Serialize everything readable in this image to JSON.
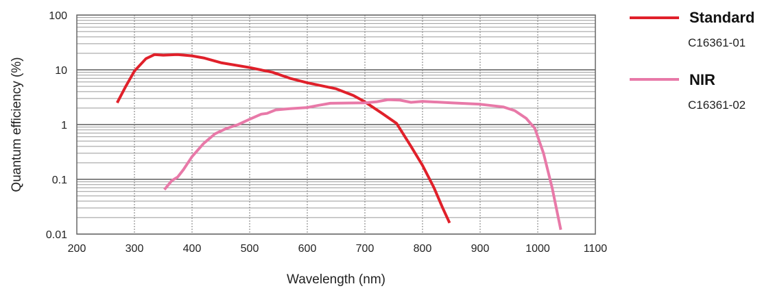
{
  "chart_data": {
    "type": "line",
    "title": "",
    "xlabel": "Wavelength (nm)",
    "ylabel": "Quantum efficiency (%)",
    "xlim": [
      200,
      1100
    ],
    "ylim": [
      0.01,
      100
    ],
    "yscale": "log",
    "xticks": [
      "200",
      "300",
      "400",
      "500",
      "600",
      "700",
      "800",
      "900",
      "1000",
      "1100"
    ],
    "yticks": [
      "0.01",
      "0.1",
      "1",
      "10",
      "100"
    ],
    "grid": true,
    "legend_position": "right",
    "series": [
      {
        "name": "Standard",
        "subtitle": "C16361-01",
        "color": "#e0202a",
        "x": [
          270,
          285,
          300,
          320,
          335,
          350,
          375,
          400,
          420,
          450,
          500,
          540,
          570,
          600,
          650,
          680,
          700,
          730,
          755,
          780,
          800,
          820,
          835,
          847
        ],
        "y": [
          2.5,
          5,
          9.5,
          16,
          19,
          18.5,
          19,
          18,
          16.5,
          13.5,
          11,
          9,
          7,
          5.8,
          4.5,
          3.4,
          2.6,
          1.6,
          1.05,
          0.4,
          0.18,
          0.07,
          0.03,
          0.016
        ]
      },
      {
        "name": "NIR",
        "subtitle": "C16361-02",
        "color": "#e879a8",
        "x": [
          352,
          365,
          375,
          385,
          400,
          420,
          440,
          460,
          480,
          500,
          520,
          530,
          545,
          570,
          600,
          620,
          640,
          700,
          720,
          740,
          760,
          780,
          800,
          850,
          900,
          940,
          960,
          980,
          995,
          1010,
          1025,
          1040
        ],
        "y": [
          0.065,
          0.095,
          0.11,
          0.15,
          0.26,
          0.45,
          0.68,
          0.85,
          1.0,
          1.25,
          1.55,
          1.6,
          1.85,
          1.95,
          2.05,
          2.25,
          2.45,
          2.5,
          2.6,
          2.85,
          2.8,
          2.55,
          2.65,
          2.5,
          2.35,
          2.1,
          1.8,
          1.3,
          0.85,
          0.3,
          0.07,
          0.012
        ]
      }
    ]
  }
}
